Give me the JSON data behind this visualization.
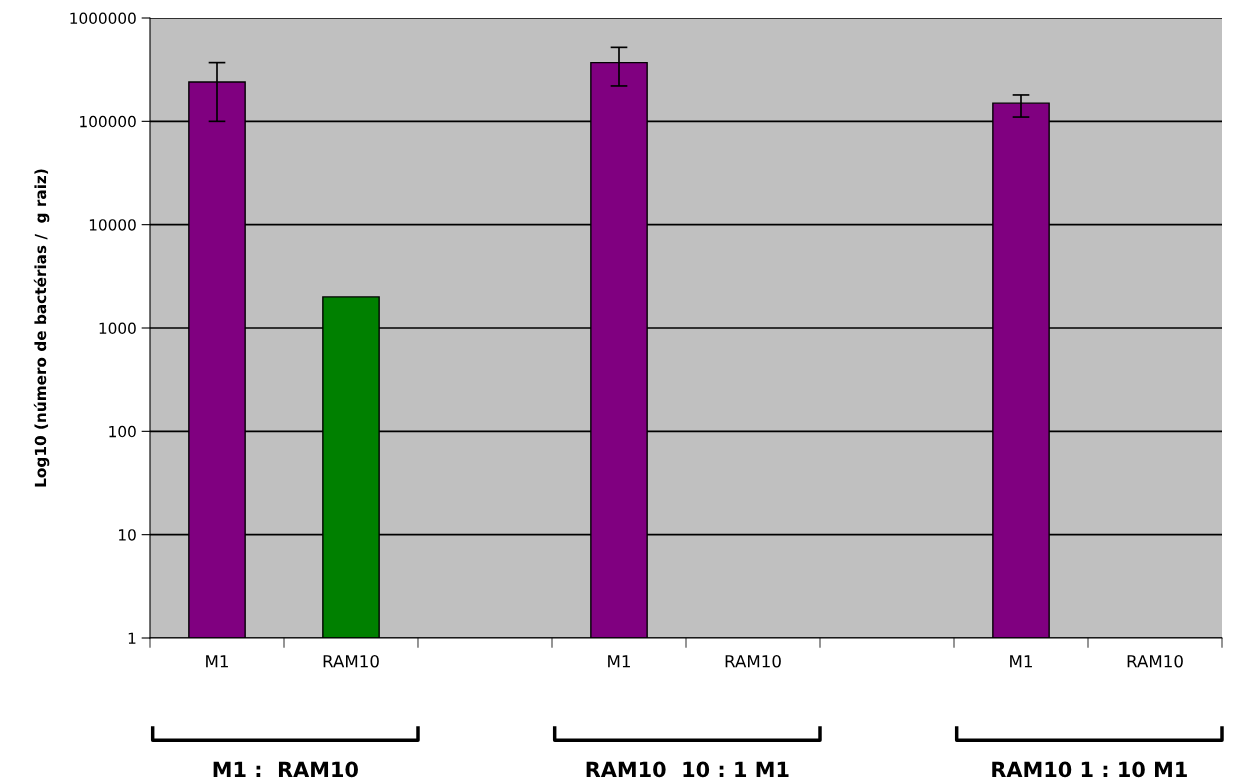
{
  "chart_data": {
    "type": "bar",
    "ylabel": "Log10 (número de bactérias /  g raiz)",
    "categories": [
      "M1",
      "RAM10",
      null,
      "M1",
      "RAM10",
      null,
      "M1",
      "RAM10"
    ],
    "values": [
      240000,
      2000,
      null,
      370000,
      null,
      null,
      150000,
      null
    ],
    "colors": [
      "#800080",
      "#008000",
      "#800080",
      "#800080",
      "#008000",
      "#800080",
      "#800080",
      "#008000"
    ],
    "errors": [
      [
        100000,
        370000
      ],
      null,
      null,
      [
        220000,
        520000
      ],
      null,
      null,
      [
        110000,
        180000
      ],
      null
    ],
    "log": true,
    "ylim": [
      1,
      1000000
    ],
    "yticks": [
      1,
      10,
      100,
      1000,
      10000,
      100000,
      1000000
    ],
    "grid": "y",
    "annotations": [
      "M1 :  RAM10",
      "RAM10  10 : 1 M1",
      "RAM10 1 : 10 M1"
    ]
  }
}
